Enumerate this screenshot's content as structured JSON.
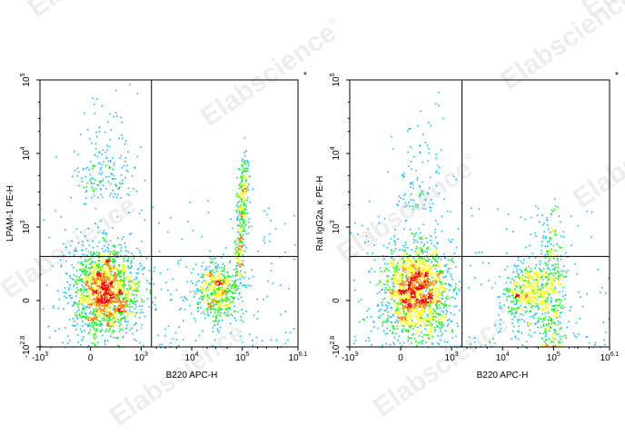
{
  "watermark": {
    "text": "Elabscience",
    "mark": "®"
  },
  "chart_data": [
    {
      "type": "scatter",
      "style": "density-pseudocolor flow cytometry dot plot",
      "xlabel": "B220 APC-H",
      "ylabel": "LPAM-1 PE-H",
      "corner_mark": "*",
      "x_scale": "biexponential",
      "y_scale": "biexponential",
      "xlim": [
        -1000,
        1258925
      ],
      "ylim": [
        -631,
        100000
      ],
      "x_ticks": [
        "-10^3",
        "0",
        "10^3",
        "10^4",
        "10^5",
        "10^6.1"
      ],
      "y_ticks": [
        "-10^2.8",
        "0",
        "10^3",
        "10^4",
        "10^5"
      ],
      "quadrant_gate": {
        "x": 1600,
        "y": 600
      },
      "density_colors": [
        "#0000ff",
        "#00c0ff",
        "#00ff00",
        "#ffff00",
        "#ff8000",
        "#ff0000"
      ],
      "populations": [
        {
          "x": 300,
          "y": 150,
          "share": 0.58
        },
        {
          "x": 30000,
          "y": 120,
          "share": 0.18
        },
        {
          "x": 90000,
          "y": 2000,
          "share": 0.12
        },
        {
          "x": 300,
          "y": 2500,
          "share": 0.07
        }
      ]
    },
    {
      "type": "scatter",
      "style": "density-pseudocolor flow cytometry dot plot",
      "xlabel": "B220 APC-H",
      "ylabel": "Rat IgG2a, κ PE-H",
      "corner_mark": "*",
      "x_scale": "biexponential",
      "y_scale": "biexponential",
      "xlim": [
        -1000,
        1258925
      ],
      "ylim": [
        -631,
        100000
      ],
      "x_ticks": [
        "-10^3",
        "0",
        "10^3",
        "10^4",
        "10^5",
        "10^6.1"
      ],
      "y_ticks": [
        "-10^2.8",
        "0",
        "10^3",
        "10^4",
        "10^5"
      ],
      "quadrant_gate": {
        "x": 1600,
        "y": 600
      },
      "density_colors": [
        "#0000ff",
        "#00c0ff",
        "#00ff00",
        "#ffff00",
        "#ff8000",
        "#ff0000"
      ],
      "populations": [
        {
          "x": 300,
          "y": 150,
          "share": 0.62
        },
        {
          "x": 30000,
          "y": 100,
          "share": 0.16
        },
        {
          "x": 90000,
          "y": 100,
          "share": 0.14
        },
        {
          "x": 300,
          "y": 1800,
          "share": 0.04
        }
      ]
    }
  ]
}
